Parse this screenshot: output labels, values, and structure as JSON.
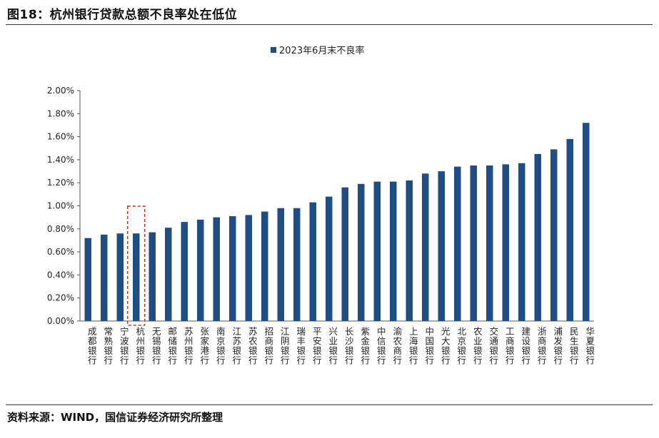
{
  "figure": {
    "title": "图18：杭州银行贷款总额不良率处在低位",
    "source": "资料来源：WIND，国信证券经济研究所整理"
  },
  "chart_data": {
    "type": "bar",
    "title": "",
    "xlabel": "",
    "ylabel": "",
    "ylim": [
      0,
      2.0
    ],
    "yticks": [
      "0.00%",
      "0.20%",
      "0.40%",
      "0.60%",
      "0.80%",
      "1.00%",
      "1.20%",
      "1.40%",
      "1.60%",
      "1.80%",
      "2.00%"
    ],
    "legend": {
      "placement": "top-center"
    },
    "grid": false,
    "bar_color": "#1f4e87",
    "highlight_color": "#c0392b",
    "highlight_category": "杭州银行",
    "categories": [
      "成都银行",
      "常熟银行",
      "宁波银行",
      "杭州银行",
      "无锡银行",
      "邮储银行",
      "苏州银行",
      "张家港行",
      "南京银行",
      "江苏银行",
      "苏农银行",
      "招商银行",
      "江阴银行",
      "瑞丰银行",
      "平安银行",
      "兴业银行",
      "长沙银行",
      "紫金银行",
      "中信银行",
      "渝农商行",
      "上海银行",
      "中国银行",
      "光大银行",
      "北京银行",
      "农业银行",
      "交通银行",
      "工商银行",
      "建设银行",
      "浙商银行",
      "浦发银行",
      "民生银行",
      "华夏银行"
    ],
    "series": [
      {
        "name": "2023年6月末不良率",
        "values": [
          0.72,
          0.75,
          0.76,
          0.76,
          0.77,
          0.81,
          0.86,
          0.88,
          0.9,
          0.91,
          0.92,
          0.95,
          0.98,
          0.98,
          1.03,
          1.08,
          1.16,
          1.19,
          1.21,
          1.21,
          1.22,
          1.28,
          1.3,
          1.34,
          1.35,
          1.35,
          1.36,
          1.37,
          1.45,
          1.49,
          1.58,
          1.72
        ]
      }
    ]
  }
}
